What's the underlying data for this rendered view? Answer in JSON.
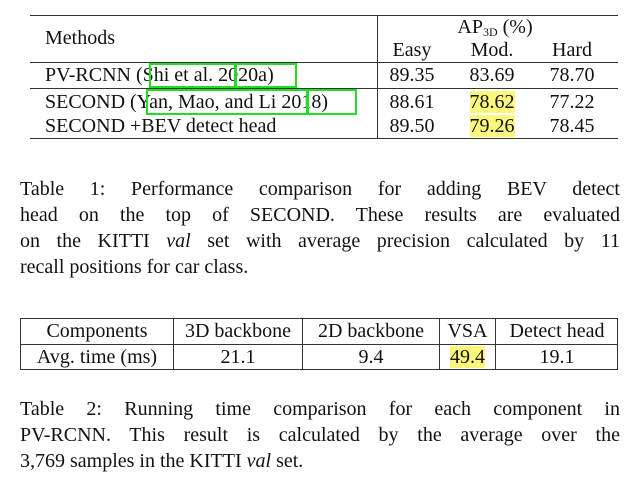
{
  "table1": {
    "header_methods": "Methods",
    "header_group": "AP",
    "header_group_sub": "3D",
    "header_group_unit": "(%)",
    "columns": [
      "Easy",
      "Mod.",
      "Hard"
    ],
    "rows": [
      {
        "method_prefix": "PV-RCNN (",
        "cite_authors": "Shi et al.",
        "cite_year": "2020a",
        "method_suffix": ")",
        "values": [
          "89.35",
          "83.69",
          "78.70"
        ]
      },
      {
        "method_prefix": "SECOND (",
        "cite_authors": "Yan, Mao, and Li",
        "cite_year": "2018",
        "method_suffix": ")",
        "values": [
          "88.61",
          "78.62",
          "77.22"
        ]
      },
      {
        "method_prefix": "SECOND +BEV detect head",
        "values": [
          "89.50",
          "79.26",
          "78.45"
        ]
      }
    ],
    "highlighted": [
      "78.62",
      "79.26"
    ],
    "caption_lines": [
      "Table 1: Performance comparison for adding BEV detect",
      "head on the top of SECOND. These results are evaluated",
      "on the KITTI ",
      "val",
      " set with average precision calculated by 11",
      "recall positions for car class."
    ]
  },
  "table2": {
    "headers": [
      "Components",
      "3D backbone",
      "2D backbone",
      "VSA",
      "Detect head"
    ],
    "row": [
      "Avg. time (ms)",
      "21.1",
      "9.4",
      "49.4",
      "19.1"
    ],
    "caption_lines": [
      "Table 2: Running time comparison for each component in",
      "PV-RCNN. This result is calculated by the average over the",
      "3,769 samples in the KITTI ",
      "val",
      " set."
    ]
  },
  "colors": {
    "highlight": "#fbf77c",
    "citation_box": "#22dd22"
  }
}
